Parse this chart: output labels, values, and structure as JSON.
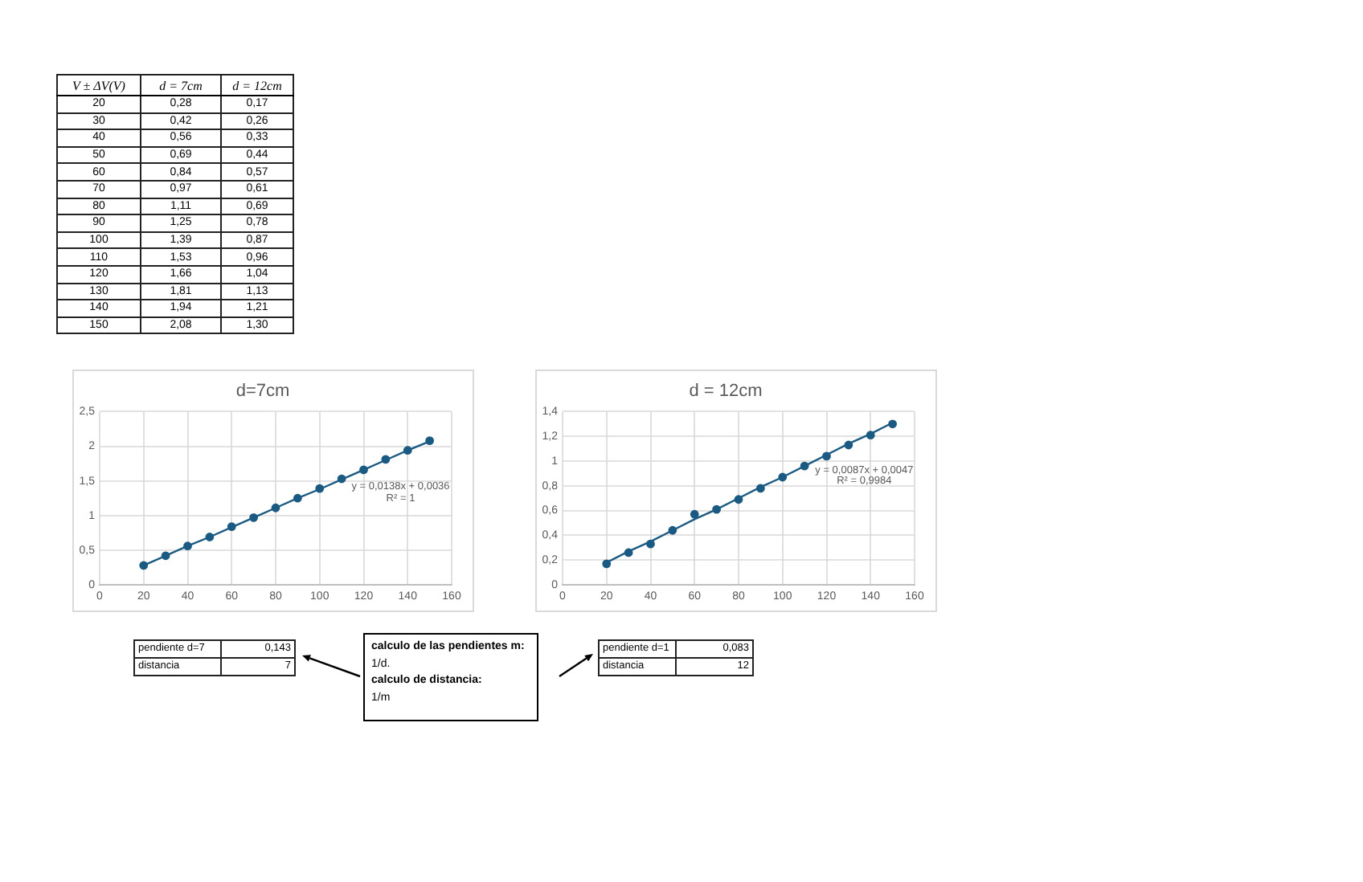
{
  "chart_data": [
    {
      "type": "other",
      "annotations": [
        "V ± ΔV(V)",
        "d = 7cm",
        "d = 12cm",
        "20",
        "0,28",
        "0,17",
        "30",
        "0,42",
        "0,26",
        "40",
        "0,56",
        "0,33",
        "50",
        "0,69",
        "0,44",
        "60",
        "0,84",
        "0,57",
        "70",
        "0,97",
        "0,61",
        "80",
        "1,11",
        "0,69",
        "90",
        "1,25",
        "0,78",
        "100",
        "1,39",
        "0,87",
        "110",
        "1,53",
        "0,96",
        "120",
        "1,66",
        "1,04",
        "130",
        "1,81",
        "1,13",
        "140",
        "1,94",
        "1,21",
        "150",
        "2,08",
        "1,30"
      ]
    },
    {
      "type": "scatter",
      "title": "d=7cm",
      "x": [
        20,
        30,
        40,
        50,
        60,
        70,
        80,
        90,
        100,
        110,
        120,
        130,
        140,
        150
      ],
      "series": [
        {
          "color": "#1a5a83",
          "values": [
            0.28,
            0.42,
            0.56,
            0.69,
            0.84,
            0.97,
            1.11,
            1.25,
            1.39,
            1.53,
            1.66,
            1.81,
            1.94,
            2.08
          ]
        },
        {
          "type": "line",
          "marker": "none",
          "color": "#1a5a83",
          "values": [
            0.28,
            0.42,
            0.56,
            0.69,
            0.83,
            0.97,
            1.11,
            1.25,
            1.38,
            1.52,
            1.66,
            1.8,
            1.94,
            2.07
          ]
        }
      ],
      "xlim": [
        0,
        160
      ],
      "xticks": [
        0,
        20,
        40,
        60,
        80,
        100,
        120,
        140,
        160
      ],
      "ylim": [
        0,
        2.5
      ],
      "yticks": [
        0,
        {
          "value": 0.5,
          "label": "0,5"
        },
        1,
        {
          "value": 1.5,
          "label": "1,5"
        },
        2,
        {
          "value": 2.5,
          "label": "2,5"
        }
      ],
      "grid": true,
      "marker": "circle",
      "annotations": [
        "y = 0,0138x + 0,0036",
        "R² = 1",
        "pendiente d=7",
        "0,143",
        "distancia",
        "7",
        "calculo de las pendientes m:",
        "1/d.",
        "calculo de distancia:",
        "1/m"
      ]
    },
    {
      "type": "scatter",
      "title": "d = 12cm",
      "x": [
        20,
        30,
        40,
        50,
        60,
        70,
        80,
        90,
        100,
        110,
        120,
        130,
        140,
        150
      ],
      "series": [
        {
          "color": "#1a5a83",
          "values": [
            0.17,
            0.26,
            0.33,
            0.44,
            0.57,
            0.61,
            0.69,
            0.78,
            0.87,
            0.96,
            1.04,
            1.13,
            1.21,
            1.3
          ]
        },
        {
          "type": "line",
          "marker": "none",
          "color": "#1a5a83",
          "values": [
            0.18,
            0.27,
            0.35,
            0.44,
            0.53,
            0.61,
            0.7,
            0.79,
            0.87,
            0.96,
            1.05,
            1.14,
            1.22,
            1.31
          ]
        }
      ],
      "xlim": [
        0,
        160
      ],
      "xticks": [
        0,
        20,
        40,
        60,
        80,
        100,
        120,
        140,
        160
      ],
      "ylim": [
        0,
        1.4
      ],
      "yticks": [
        0,
        {
          "value": 0.2,
          "label": "0,2"
        },
        {
          "value": 0.4,
          "label": "0,4"
        },
        {
          "value": 0.6,
          "label": "0,6"
        },
        {
          "value": 0.8,
          "label": "0,8"
        },
        1,
        {
          "value": 1.2,
          "label": "1,2"
        },
        {
          "value": 1.4,
          "label": "1,4"
        }
      ],
      "grid": true,
      "marker": "circle",
      "annotations": [
        "y = 0,0087x + 0,0047",
        "R² = 0,9984",
        "pendiente d=1",
        "0,083",
        "distancia",
        "12"
      ]
    }
  ]
}
